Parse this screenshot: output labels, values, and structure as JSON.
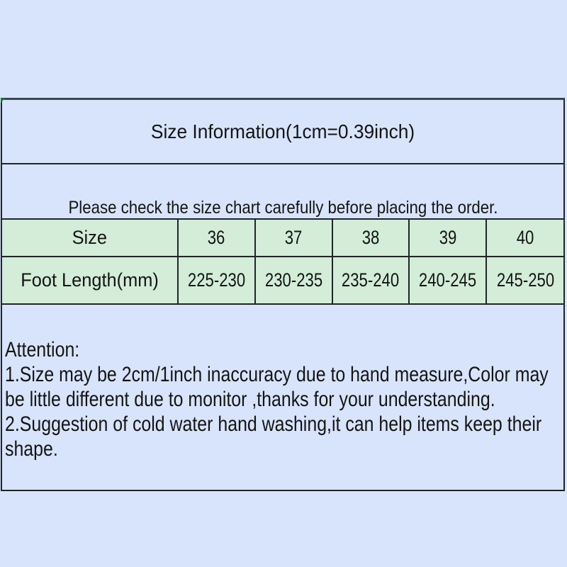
{
  "colors": {
    "page-bg": "#d8e4fb",
    "cell-bg": "#d3edd8",
    "border": "#212528",
    "top-border": "#3d454d",
    "text": "#141414",
    "corner-green": "#0f8c1c"
  },
  "header": {
    "title": "Size Information(1cm=0.39inch)"
  },
  "notice": {
    "text": "Please check the size chart carefully before placing the order."
  },
  "size_table": {
    "row1_label": "Size",
    "row2_label": "Foot Length(mm)",
    "sizes": [
      "36",
      "37",
      "38",
      "39",
      "40"
    ],
    "foot_lengths_mm": [
      "225-230",
      "230-235",
      "235-240",
      "240-245",
      "245-250"
    ]
  },
  "attention": {
    "heading": "Attention:",
    "lines": [
      "1.Size may be 2cm/1inch inaccuracy due to hand measure,Color may",
      "be little different due to monitor ,thanks for your understanding.",
      "2.Suggestion of cold water hand washing,it can help items keep their",
      "shape."
    ]
  }
}
